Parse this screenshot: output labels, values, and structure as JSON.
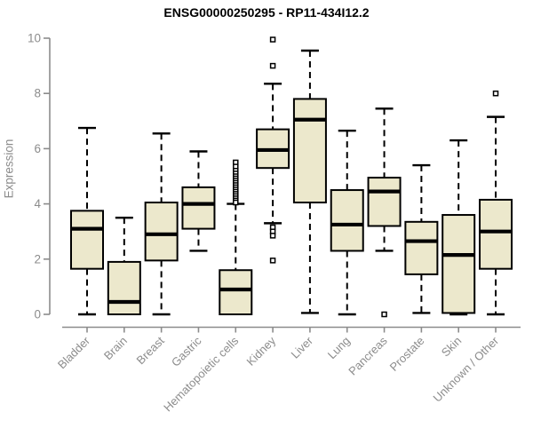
{
  "chart_data": {
    "type": "boxplot",
    "title": "ENSG00000250295 - RP11-434I12.2",
    "xlabel": "",
    "ylabel": "Expression",
    "ylim": [
      0,
      10
    ],
    "yticks": [
      0,
      2,
      4,
      6,
      8,
      10
    ],
    "grid": false,
    "legend": false,
    "colors": {
      "box_fill": "#ece8cc",
      "box_stroke": "#000000",
      "median": "#000000",
      "whisker": "#000000",
      "outlier_stroke": "#000000",
      "outlier_fill": "#ffffff",
      "axis": "#8c8c8c",
      "tick_label": "#8c8c8c",
      "title": "#000000",
      "background": "#ffffff"
    },
    "categories": [
      "Bladder",
      "Brain",
      "Breast",
      "Gastric",
      "Hematopoietic cells",
      "Kidney",
      "Liver",
      "Lung",
      "Pancreas",
      "Prostate",
      "Skin",
      "Unknown / Other"
    ],
    "boxes": [
      {
        "category": "Bladder",
        "low": 0,
        "q1": 1.65,
        "median": 3.1,
        "q3": 3.75,
        "high": 6.75,
        "outliers": []
      },
      {
        "category": "Brain",
        "low": 0,
        "q1": 0,
        "median": 0.45,
        "q3": 1.9,
        "high": 3.5,
        "outliers": []
      },
      {
        "category": "Breast",
        "low": 0,
        "q1": 1.95,
        "median": 2.9,
        "q3": 4.05,
        "high": 6.55,
        "outliers": []
      },
      {
        "category": "Gastric",
        "low": 2.3,
        "q1": 3.1,
        "median": 4.0,
        "q3": 4.6,
        "high": 5.9,
        "outliers": []
      },
      {
        "category": "Hematopoietic cells",
        "low": 0,
        "q1": 0,
        "median": 0.9,
        "q3": 1.6,
        "high": 4.0,
        "outliers": [
          5.5,
          5.35,
          5.2,
          5.1,
          5.0,
          4.92,
          4.84,
          4.76,
          4.68,
          4.6,
          4.52,
          4.44,
          4.36,
          4.28,
          4.2,
          4.12,
          4.05
        ]
      },
      {
        "category": "Kidney",
        "low": 3.3,
        "q1": 5.3,
        "median": 5.95,
        "q3": 6.7,
        "high": 8.35,
        "outliers": [
          9.95,
          9.0,
          3.15,
          3.0,
          2.85,
          1.95
        ]
      },
      {
        "category": "Liver",
        "low": 0.05,
        "q1": 4.05,
        "median": 7.05,
        "q3": 7.8,
        "high": 9.55,
        "outliers": []
      },
      {
        "category": "Lung",
        "low": 0,
        "q1": 2.3,
        "median": 3.25,
        "q3": 4.5,
        "high": 6.65,
        "outliers": []
      },
      {
        "category": "Pancreas",
        "low": 2.3,
        "q1": 3.2,
        "median": 4.45,
        "q3": 4.95,
        "high": 7.45,
        "outliers": [
          0.0
        ]
      },
      {
        "category": "Prostate",
        "low": 0.05,
        "q1": 1.45,
        "median": 2.65,
        "q3": 3.35,
        "high": 5.4,
        "outliers": []
      },
      {
        "category": "Skin",
        "low": 0,
        "q1": 0.05,
        "median": 2.15,
        "q3": 3.6,
        "high": 6.3,
        "outliers": []
      },
      {
        "category": "Unknown / Other",
        "low": 0,
        "q1": 1.65,
        "median": 3.0,
        "q3": 4.15,
        "high": 7.15,
        "outliers": [
          8.0
        ]
      }
    ]
  }
}
